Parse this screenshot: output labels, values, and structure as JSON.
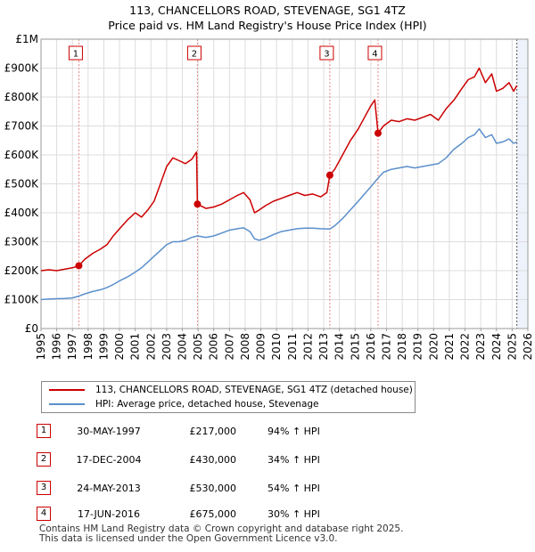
{
  "title": {
    "line1": "113, CHANCELLORS ROAD, STEVENAGE, SG1 4TZ",
    "line2": "Price paid vs. HM Land Registry's House Price Index (HPI)"
  },
  "legend": {
    "property_label": "113, CHANCELLORS ROAD, STEVENAGE, SG1 4TZ (detached house)",
    "hpi_label": "HPI: Average price, detached house, Stevenage"
  },
  "colors": {
    "property": "#cc0000",
    "hpi": "#5b8fcc",
    "grid": "#dddddd",
    "marker_line": "#e88a8a",
    "shade": "#eef2fb"
  },
  "sales": [
    {
      "num": "1",
      "date": "30-MAY-1997",
      "price": "£217,000",
      "hpi": "94% ↑ HPI"
    },
    {
      "num": "2",
      "date": "17-DEC-2004",
      "price": "£430,000",
      "hpi": "34% ↑ HPI"
    },
    {
      "num": "3",
      "date": "24-MAY-2013",
      "price": "£530,000",
      "hpi": "54% ↑ HPI"
    },
    {
      "num": "4",
      "date": "17-JUN-2016",
      "price": "£675,000",
      "hpi": "30% ↑ HPI"
    }
  ],
  "footer": {
    "line1": "Contains HM Land Registry data © Crown copyright and database right 2025.",
    "line2": "This data is licensed under the Open Government Licence v3.0."
  },
  "chart_data": {
    "type": "line",
    "title": "113, CHANCELLORS ROAD, STEVENAGE, SG1 4TZ — Price paid vs. HM Land Registry's House Price Index (HPI)",
    "xlabel": "",
    "ylabel": "",
    "xlim": [
      1995,
      2026
    ],
    "ylim": [
      0,
      1000000
    ],
    "y_ticks": [
      0,
      100000,
      200000,
      300000,
      400000,
      500000,
      600000,
      700000,
      800000,
      900000,
      1000000
    ],
    "y_tick_labels": [
      "£0",
      "£100K",
      "£200K",
      "£300K",
      "£400K",
      "£500K",
      "£600K",
      "£700K",
      "£800K",
      "£900K",
      "£1M"
    ],
    "x_ticks": [
      1995,
      1996,
      1997,
      1998,
      1999,
      2000,
      2001,
      2002,
      2003,
      2004,
      2005,
      2006,
      2007,
      2008,
      2009,
      2010,
      2011,
      2012,
      2013,
      2014,
      2015,
      2016,
      2017,
      2018,
      2019,
      2020,
      2021,
      2022,
      2023,
      2024,
      2025,
      2026
    ],
    "grid": true,
    "legend_position": "below-chart",
    "data_end_x": 2025.3,
    "shaded_after_x": 2025.3,
    "series": [
      {
        "name": "113, CHANCELLORS ROAD, STEVENAGE, SG1 4TZ (detached house)",
        "x": [
          1995.0,
          1995.5,
          1996.0,
          1996.5,
          1997.0,
          1997.41,
          1997.8,
          1998.3,
          1998.8,
          1999.2,
          1999.6,
          2000.0,
          2000.5,
          2001.0,
          2001.4,
          2001.8,
          2002.2,
          2002.6,
          2003.0,
          2003.4,
          2003.8,
          2004.2,
          2004.6,
          2004.9,
          2004.96,
          2005.5,
          2006.0,
          2006.5,
          2007.0,
          2007.5,
          2007.9,
          2008.3,
          2008.6,
          2008.9,
          2009.3,
          2009.8,
          2010.3,
          2010.8,
          2011.3,
          2011.8,
          2012.3,
          2012.8,
          2013.2,
          2013.39,
          2013.7,
          2014.2,
          2014.7,
          2015.2,
          2015.6,
          2016.0,
          2016.25,
          2016.46,
          2016.8,
          2017.3,
          2017.8,
          2018.3,
          2018.8,
          2019.3,
          2019.8,
          2020.3,
          2020.8,
          2021.3,
          2021.8,
          2022.2,
          2022.6,
          2022.9,
          2023.3,
          2023.7,
          2024.0,
          2024.4,
          2024.8,
          2025.1,
          2025.3
        ],
        "values": [
          200000,
          203000,
          200000,
          205000,
          210000,
          217000,
          240000,
          260000,
          275000,
          290000,
          320000,
          345000,
          375000,
          400000,
          385000,
          410000,
          440000,
          500000,
          560000,
          590000,
          580000,
          570000,
          585000,
          610000,
          430000,
          415000,
          420000,
          430000,
          445000,
          460000,
          470000,
          445000,
          400000,
          410000,
          425000,
          440000,
          450000,
          460000,
          470000,
          460000,
          465000,
          455000,
          470000,
          530000,
          550000,
          600000,
          650000,
          690000,
          730000,
          770000,
          790000,
          675000,
          700000,
          720000,
          715000,
          725000,
          720000,
          730000,
          740000,
          720000,
          760000,
          790000,
          830000,
          860000,
          870000,
          900000,
          850000,
          880000,
          820000,
          830000,
          850000,
          820000,
          840000
        ]
      },
      {
        "name": "HPI: Average price, detached house, Stevenage",
        "x": [
          1995.0,
          1995.5,
          1996.0,
          1996.5,
          1997.0,
          1997.41,
          1997.8,
          1998.3,
          1998.8,
          1999.2,
          1999.6,
          2000.0,
          2000.5,
          2001.0,
          2001.4,
          2001.8,
          2002.2,
          2002.6,
          2003.0,
          2003.4,
          2003.8,
          2004.2,
          2004.6,
          2004.96,
          2005.5,
          2006.0,
          2006.5,
          2007.0,
          2007.5,
          2007.9,
          2008.3,
          2008.6,
          2008.9,
          2009.3,
          2009.8,
          2010.3,
          2010.8,
          2011.3,
          2011.8,
          2012.3,
          2012.8,
          2013.39,
          2013.7,
          2014.2,
          2014.7,
          2015.2,
          2015.6,
          2016.0,
          2016.46,
          2016.8,
          2017.3,
          2017.8,
          2018.3,
          2018.8,
          2019.3,
          2019.8,
          2020.3,
          2020.8,
          2021.3,
          2021.8,
          2022.2,
          2022.6,
          2022.9,
          2023.3,
          2023.7,
          2024.0,
          2024.4,
          2024.8,
          2025.1,
          2025.3
        ],
        "values": [
          100000,
          102000,
          103000,
          104000,
          106000,
          112000,
          120000,
          128000,
          134000,
          142000,
          152000,
          165000,
          178000,
          195000,
          210000,
          230000,
          250000,
          270000,
          290000,
          300000,
          300000,
          305000,
          315000,
          320000,
          315000,
          320000,
          330000,
          340000,
          345000,
          348000,
          335000,
          310000,
          305000,
          312000,
          325000,
          335000,
          340000,
          345000,
          347000,
          347000,
          345000,
          344000,
          355000,
          380000,
          410000,
          440000,
          465000,
          490000,
          520000,
          540000,
          550000,
          555000,
          560000,
          555000,
          560000,
          565000,
          570000,
          590000,
          620000,
          640000,
          660000,
          670000,
          690000,
          660000,
          670000,
          640000,
          645000,
          655000,
          640000,
          645000
        ]
      }
    ],
    "sale_markers": [
      {
        "label": "1",
        "x": 1997.41,
        "value": 217000
      },
      {
        "label": "2",
        "x": 2004.96,
        "value": 430000
      },
      {
        "label": "3",
        "x": 2013.39,
        "value": 530000
      },
      {
        "label": "4",
        "x": 2016.46,
        "value": 675000
      }
    ]
  }
}
